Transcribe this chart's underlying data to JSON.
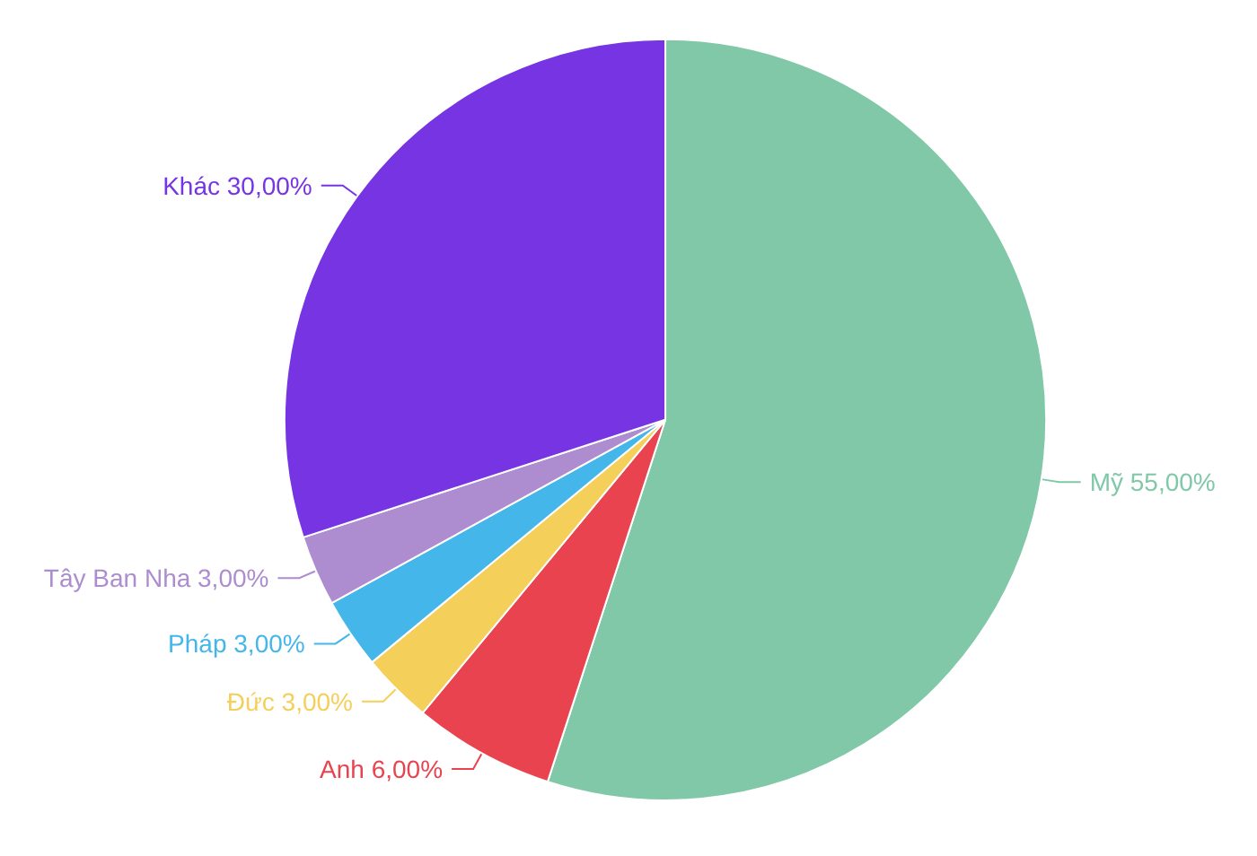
{
  "chart_data": {
    "type": "pie",
    "categories": [
      "Mỹ",
      "Anh",
      "Đức",
      "Pháp",
      "Tây Ban Nha",
      "Khác"
    ],
    "values": [
      55,
      6,
      3,
      3,
      3,
      30
    ],
    "value_labels": [
      "55,00%",
      "6,00%",
      "3,00%",
      "3,00%",
      "3,00%",
      "30,00%"
    ],
    "colors": [
      "#81c8a8",
      "#e8434f",
      "#f4cf5a",
      "#45b6ea",
      "#ad8ccf",
      "#7634e3"
    ],
    "legend": false
  }
}
